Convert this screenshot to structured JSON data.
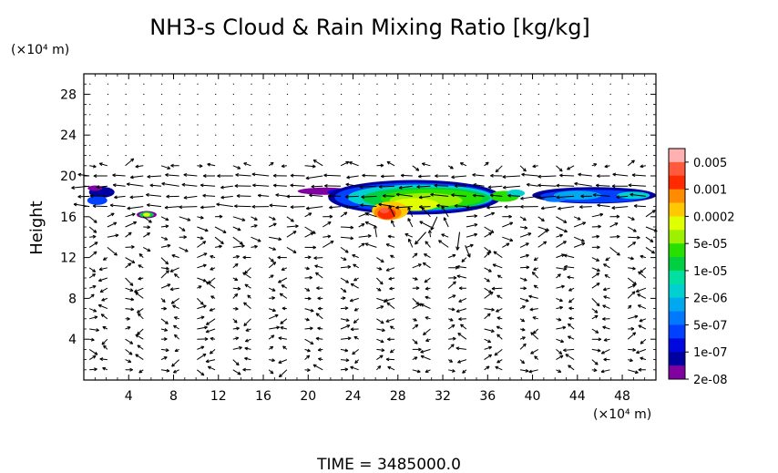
{
  "chart_data": {
    "type": "heatmap",
    "title": "NH3-s Cloud & Rain Mixing Ratio [kg/kg]",
    "ylabel": "Height",
    "x_unit": "(×10⁴ m)",
    "y_unit": "(×10⁴ m)",
    "xlim": [
      0,
      51
    ],
    "ylim": [
      0,
      30
    ],
    "x_ticks": [
      4,
      8,
      12,
      16,
      20,
      24,
      28,
      32,
      36,
      40,
      44,
      48
    ],
    "y_ticks": [
      4,
      8,
      12,
      16,
      20,
      24,
      28
    ],
    "colorbar": {
      "labels": [
        "0.005",
        "0.001",
        "0.0002",
        "5e-05",
        "1e-05",
        "2e-06",
        "5e-07",
        "1e-07",
        "2e-08"
      ],
      "colors": [
        "#ffb0b0",
        "#ff5a3c",
        "#ff2a00",
        "#ff8c00",
        "#ffc800",
        "#e0ff00",
        "#9cf000",
        "#28e000",
        "#00d040",
        "#00e0a0",
        "#00d0d0",
        "#00a8f0",
        "#0078ff",
        "#0040ff",
        "#0008e0",
        "#0000a0",
        "#8000a0"
      ]
    },
    "cloud_regions": [
      {
        "name": "left edge layer",
        "x": [
          0,
          3.2
        ],
        "y": [
          16.8,
          19.2
        ],
        "level": "1e-07"
      },
      {
        "name": "small cloud",
        "x": [
          4.8,
          6.4
        ],
        "y": [
          15.8,
          16.6
        ],
        "level": "1e-05"
      },
      {
        "name": "main layer",
        "x": [
          18.5,
          40
        ],
        "y": [
          16,
          19.8
        ],
        "level": "1e-05"
      },
      {
        "name": "convective core",
        "x": [
          26,
          28.5
        ],
        "y": [
          15.2,
          17.6
        ],
        "level": "0.001"
      },
      {
        "name": "right layer",
        "x": [
          40,
          51
        ],
        "y": [
          16.8,
          19.3
        ],
        "level": "1e-07"
      }
    ],
    "wind_field": "vector arrows on a regular grid"
  },
  "footer": {
    "time_text": "TIME = 3485000.0"
  }
}
